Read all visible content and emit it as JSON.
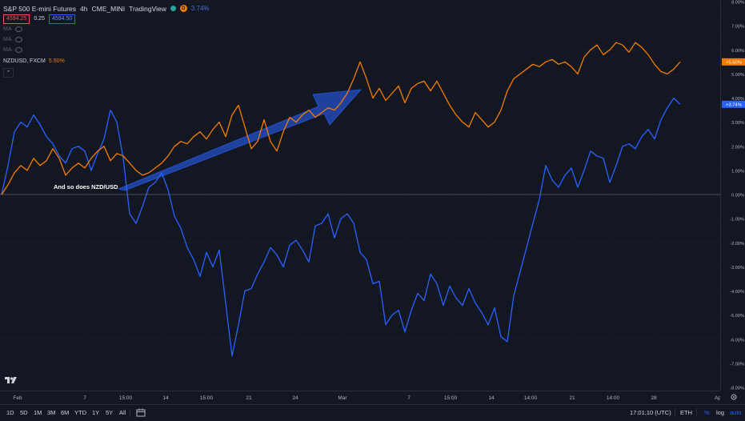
{
  "legend": {
    "instrument": "S&P 500 E-mini Futures",
    "interval": "4h",
    "exchange": "CME_MINI",
    "brand": "TradingView",
    "change_pct": "3.74%",
    "bid": "4594.25",
    "spread": "0.25",
    "ask": "4594.50",
    "ma_label": "MA",
    "compare_symbol": "NZDUSD, FXCM",
    "compare_pct": "5.50%"
  },
  "annotation": {
    "text": "And so does NZD/USD"
  },
  "colors": {
    "spx": "#2962ff",
    "nzd": "#f57c00",
    "arrow": "#2962ff",
    "background": "#131722"
  },
  "chart_data": {
    "type": "line",
    "y_unit": "% change",
    "ylim": [
      -8,
      8
    ],
    "y_ticks": [
      "8.00%",
      "7.00%",
      "6.00%",
      "5.00%",
      "4.00%",
      "3.00%",
      "2.00%",
      "1.00%",
      "0.00%",
      "-1.00%",
      "-2.00%",
      "-3.00%",
      "-4.00%",
      "-5.00%",
      "-6.00%",
      "-7.00%",
      "-8.00%"
    ],
    "x_ticks": [
      "Feb",
      "7",
      "15:00",
      "14",
      "15:00",
      "21",
      "24",
      "Mar",
      "7",
      "15:00",
      "14",
      "14:00",
      "21",
      "14:00",
      "28",
      "Apr"
    ],
    "last_value_labels": {
      "nzd": "+5.50%",
      "spx": "+3.74%"
    },
    "series": [
      {
        "key": "spx",
        "values": [
          0,
          1.2,
          2.6,
          3.0,
          2.8,
          3.3,
          2.9,
          2.4,
          2.1,
          1.6,
          1.3,
          1.9,
          2.0,
          1.8,
          1.0,
          1.7,
          2.3,
          3.5,
          3.0,
          1.5,
          -0.8,
          -1.2,
          -0.5,
          0.3,
          0.5,
          0.9,
          0.2,
          -0.9,
          -1.4,
          -2.2,
          -2.7,
          -3.4,
          -2.4,
          -3.0,
          -2.3,
          -4.5,
          -6.7,
          -5.4,
          -4.0,
          -3.9,
          -3.3,
          -2.8,
          -2.2,
          -2.5,
          -3.0,
          -2.1,
          -1.9,
          -2.3,
          -2.8,
          -1.3,
          -1.2,
          -0.8,
          -1.8,
          -1.0,
          -0.8,
          -1.2,
          -2.4,
          -2.7,
          -3.7,
          -3.6,
          -5.4,
          -5.0,
          -4.8,
          -5.7,
          -4.8,
          -4.1,
          -4.4,
          -3.3,
          -3.7,
          -4.6,
          -3.8,
          -4.3,
          -4.6,
          -3.9,
          -4.5,
          -4.9,
          -5.4,
          -4.7,
          -5.9,
          -6.1,
          -4.2,
          -3.2,
          -2.2,
          -1.2,
          -0.2,
          1.2,
          0.6,
          0.3,
          0.8,
          1.1,
          0.3,
          1.0,
          1.8,
          1.6,
          1.5,
          0.5,
          1.2,
          2.0,
          2.1,
          1.9,
          2.4,
          2.7,
          2.3,
          3.1,
          3.6,
          4.0,
          3.74
        ]
      },
      {
        "key": "nzd",
        "values": [
          0,
          0.4,
          0.9,
          1.2,
          1.0,
          1.5,
          1.2,
          1.4,
          1.9,
          1.5,
          0.8,
          1.1,
          1.3,
          1.1,
          1.5,
          1.8,
          2.0,
          1.4,
          1.7,
          1.6,
          1.3,
          1.0,
          0.8,
          0.9,
          1.1,
          1.3,
          1.6,
          2.0,
          2.2,
          2.1,
          2.4,
          2.6,
          2.3,
          2.7,
          3.0,
          2.4,
          3.3,
          3.7,
          2.8,
          1.9,
          2.2,
          3.1,
          2.2,
          1.8,
          2.6,
          3.2,
          3.0,
          3.3,
          3.5,
          3.2,
          3.4,
          3.6,
          3.5,
          3.8,
          4.2,
          4.8,
          5.5,
          4.8,
          4.0,
          4.4,
          3.9,
          4.2,
          4.5,
          3.8,
          4.4,
          4.6,
          4.7,
          4.3,
          4.7,
          4.2,
          3.7,
          3.3,
          3.0,
          2.8,
          3.4,
          3.1,
          2.8,
          3.0,
          3.5,
          4.3,
          4.8,
          5.0,
          5.2,
          5.4,
          5.3,
          5.5,
          5.6,
          5.4,
          5.5,
          5.3,
          5.0,
          5.7,
          6.0,
          6.2,
          5.8,
          6.0,
          6.3,
          6.2,
          5.9,
          6.3,
          6.1,
          5.8,
          5.4,
          5.1,
          5.0,
          5.2,
          5.5
        ]
      }
    ]
  },
  "toolbar": {
    "ranges": [
      "1D",
      "5D",
      "1M",
      "3M",
      "6M",
      "YTD",
      "1Y",
      "5Y",
      "All"
    ],
    "clock": "17:01:10 (UTC)",
    "session": "ETH",
    "percent": "%",
    "log": "log",
    "auto": "auto"
  }
}
